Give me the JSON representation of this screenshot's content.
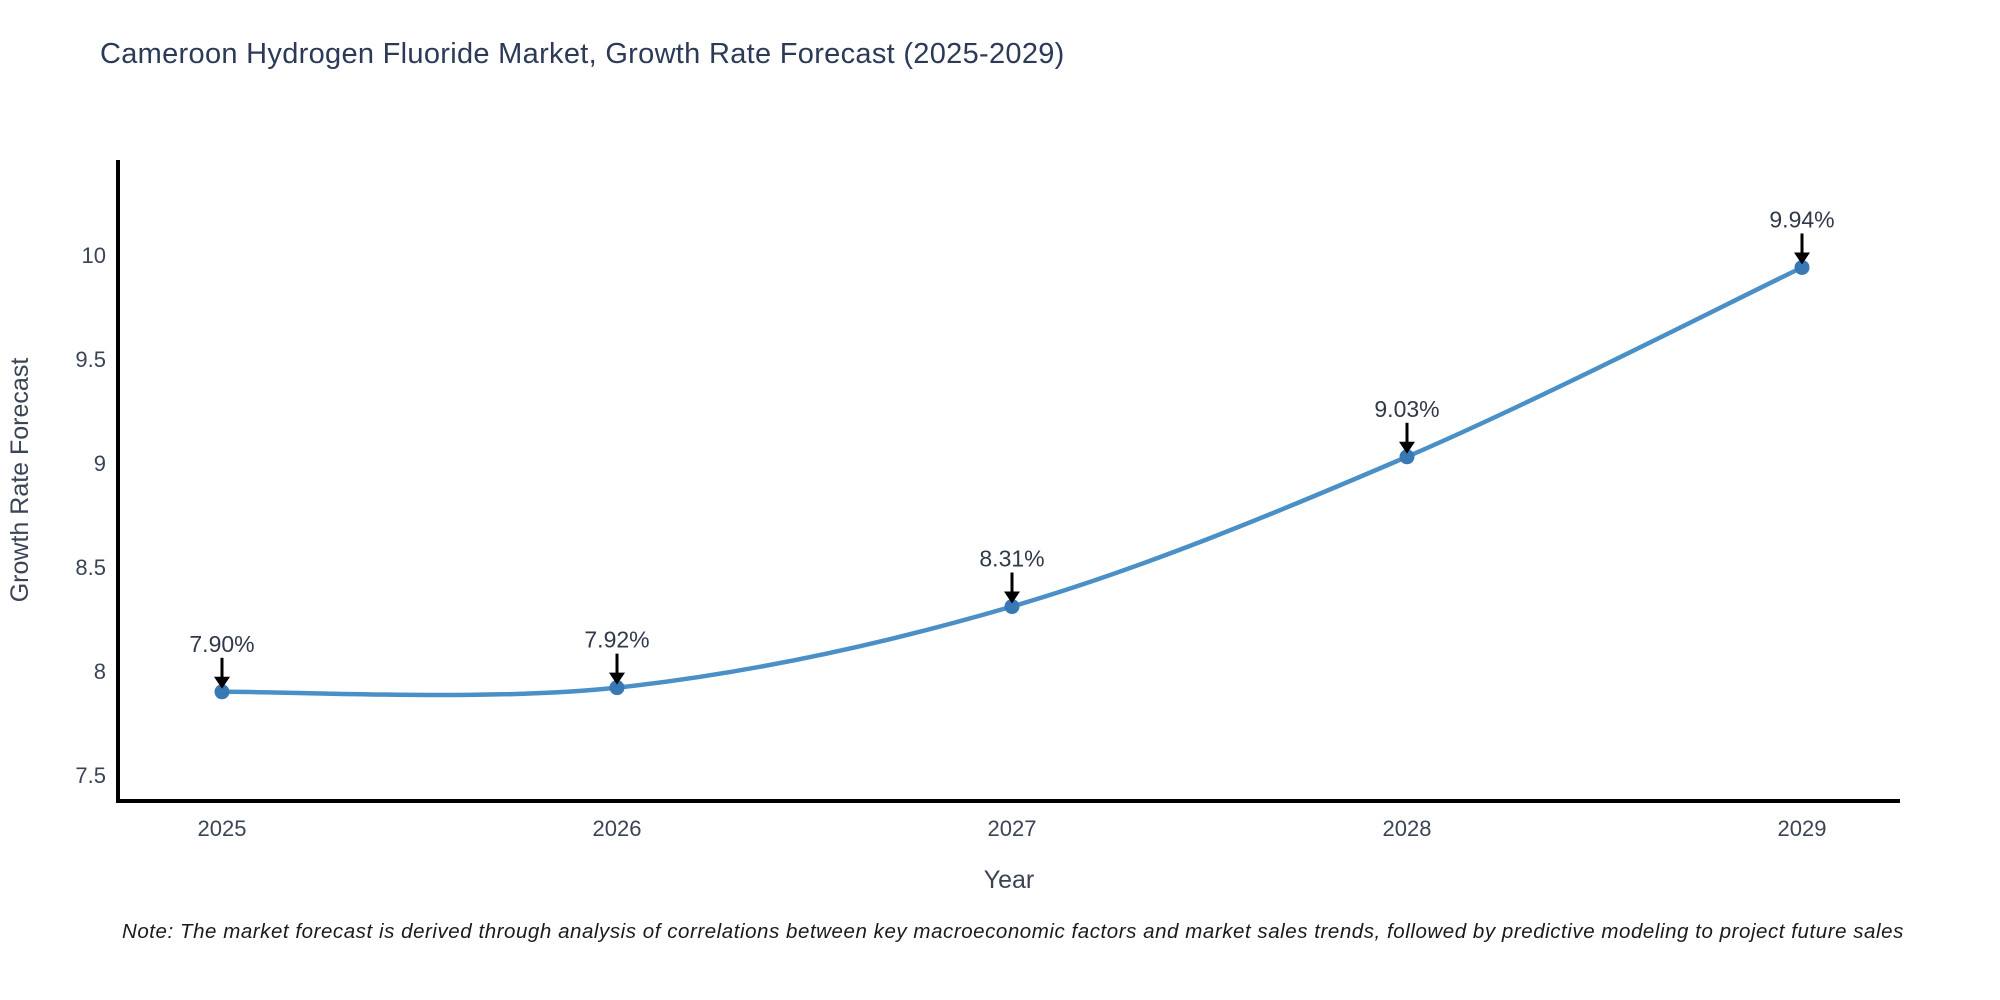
{
  "title": "Cameroon Hydrogen Fluoride Market, Growth Rate Forecast (2025-2029)",
  "note": "Note: The market forecast is derived through analysis of correlations between key macroeconomic factors and market sales trends, followed by predictive modeling to project future sales",
  "chart_data": {
    "type": "line",
    "title": "Cameroon Hydrogen Fluoride Market, Growth Rate Forecast (2025-2029)",
    "x": [
      "2025",
      "2026",
      "2027",
      "2028",
      "2029"
    ],
    "series": [
      {
        "name": "Growth Rate Forecast",
        "values": [
          7.9,
          7.92,
          8.31,
          9.03,
          9.94
        ]
      }
    ],
    "point_labels": [
      "7.90%",
      "7.92%",
      "8.31%",
      "9.03%",
      "9.94%"
    ],
    "xlabel": "Year",
    "ylabel": "Growth Rate Forecast",
    "yticks_labels": [
      "7.5",
      "8",
      "8.5",
      "9",
      "9.5",
      "10"
    ],
    "yticks_values": [
      7.5,
      8,
      8.5,
      9,
      9.5,
      10
    ],
    "ylim": [
      7.37,
      10.46
    ],
    "grid": false,
    "legend_position": "none",
    "line_style": "spline",
    "annotations": "black down arrows from percentage labels to markers",
    "colors": {
      "line": "#4a90c6",
      "marker": "#3879b5",
      "axis": "#000000",
      "tick_text": "#3b4455",
      "title_text": "#2c3a57",
      "annotation_text": "#30394a",
      "arrow": "#000000",
      "background": "#ffffff"
    }
  }
}
